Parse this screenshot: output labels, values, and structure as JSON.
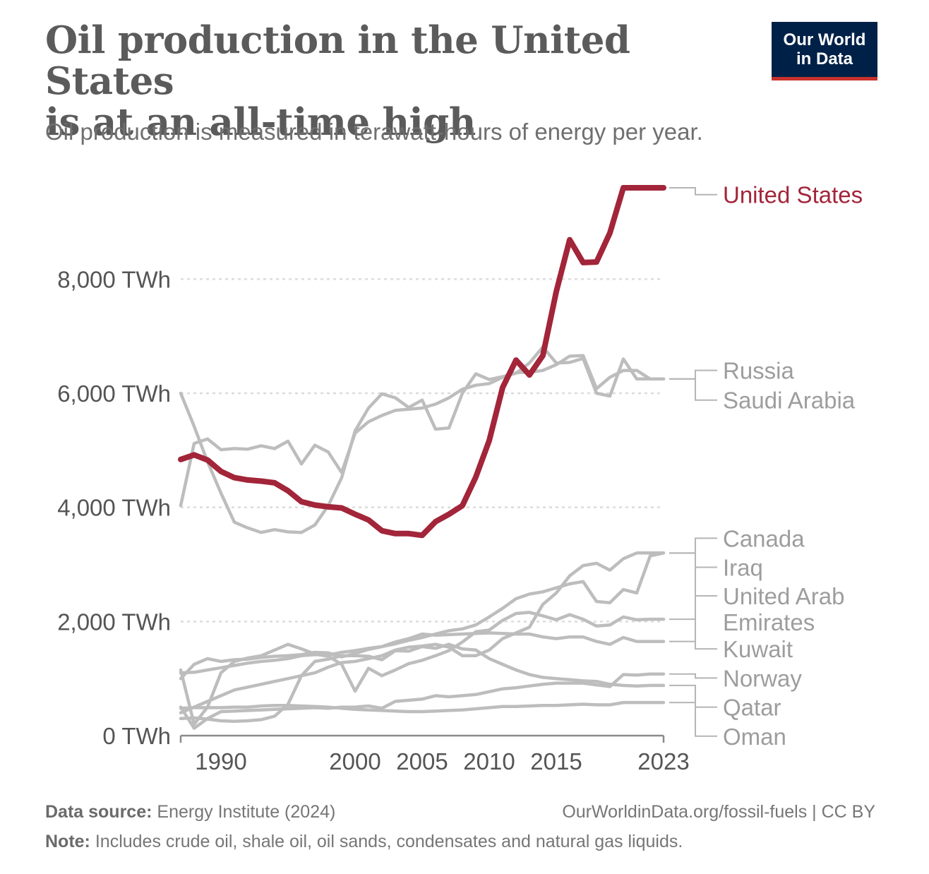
{
  "title_line1": "Oil production in the United States",
  "title_line2": "is at an all-time high",
  "subtitle": "Oil production is measured in terawatt-hours of energy per year.",
  "logo": {
    "line1": "Our World",
    "line2": "in Data"
  },
  "footer": {
    "source_label": "Data source:",
    "source_text": "Energy Institute (2024)",
    "url": "OurWorldinData.org/fossil-fuels | CC BY",
    "note_label": "Note:",
    "note_text": "Includes crude oil, shale oil, oil sands, condensates and natural gas liquids."
  },
  "colors": {
    "highlight": "#a2253a",
    "other": "#bdbdbd",
    "grid": "#dcdcdc",
    "axis_text": "#555555"
  },
  "chart_data": {
    "type": "line",
    "y_unit": "TWh",
    "ylim": [
      0,
      9600
    ],
    "xlim": [
      1987,
      2023
    ],
    "y_ticks": [
      {
        "value": 0,
        "label": "0 TWh"
      },
      {
        "value": 2000,
        "label": "2,000 TWh"
      },
      {
        "value": 4000,
        "label": "4,000 TWh"
      },
      {
        "value": 6000,
        "label": "6,000 TWh"
      },
      {
        "value": 8000,
        "label": "8,000 TWh"
      }
    ],
    "x_ticks": [
      {
        "value": 1990,
        "label": "1990"
      },
      {
        "value": 2000,
        "label": "2000"
      },
      {
        "value": 2005,
        "label": "2005"
      },
      {
        "value": 2010,
        "label": "2010"
      },
      {
        "value": 2015,
        "label": "2015"
      },
      {
        "value": 2023,
        "label": "2023"
      }
    ],
    "grid": "horizontal dotted",
    "legend": "right, labels at line ends",
    "years": [
      1987,
      1988,
      1989,
      1990,
      1991,
      1992,
      1993,
      1994,
      1995,
      1996,
      1997,
      1998,
      1999,
      2000,
      2001,
      2002,
      2003,
      2004,
      2005,
      2006,
      2007,
      2008,
      2009,
      2010,
      2011,
      2012,
      2013,
      2014,
      2015,
      2016,
      2017,
      2018,
      2019,
      2020,
      2021,
      2022,
      2023
    ],
    "series": [
      {
        "name": "United States",
        "highlight": true,
        "values": [
          4840,
          4920,
          4830,
          4630,
          4520,
          4480,
          4460,
          4430,
          4290,
          4100,
          4040,
          4010,
          3990,
          3880,
          3780,
          3590,
          3540,
          3540,
          3510,
          3750,
          3880,
          4030,
          4530,
          5170,
          6100,
          6580,
          6320,
          6660,
          7780,
          8690,
          8290,
          8300,
          8810,
          9600,
          9600,
          9600,
          9600
        ]
      },
      {
        "name": "Russia",
        "values": [
          6000,
          5420,
          4800,
          4250,
          3740,
          3640,
          3560,
          3610,
          3570,
          3560,
          3690,
          4030,
          4520,
          5340,
          5740,
          5990,
          5920,
          5750,
          5880,
          5370,
          5390,
          6000,
          6340,
          6240,
          6290,
          6350,
          6530,
          6810,
          6530,
          6540,
          6610,
          6000,
          5950,
          6600,
          6250,
          6250,
          6250
        ]
      },
      {
        "name": "Saudi Arabia",
        "values": [
          4030,
          5120,
          5200,
          5010,
          5030,
          5020,
          5080,
          5030,
          5160,
          4760,
          5090,
          4970,
          4610,
          5300,
          5500,
          5610,
          5700,
          5720,
          5740,
          5810,
          5920,
          6070,
          6140,
          6170,
          6280,
          6360,
          6370,
          6400,
          6500,
          6650,
          6660,
          6080,
          6280,
          6400,
          6400,
          6250,
          6250
        ]
      },
      {
        "name": "Canada",
        "values": [
          1100,
          1110,
          1150,
          1190,
          1230,
          1270,
          1300,
          1320,
          1350,
          1400,
          1420,
          1410,
          1460,
          1490,
          1530,
          1560,
          1610,
          1670,
          1720,
          1780,
          1840,
          1870,
          1940,
          2080,
          2230,
          2400,
          2480,
          2520,
          2590,
          2660,
          2700,
          2350,
          2330,
          2560,
          2500,
          3150,
          3200
        ]
      },
      {
        "name": "Iraq",
        "values": [
          1150,
          200,
          500,
          1100,
          1300,
          1360,
          1400,
          1500,
          1600,
          1520,
          1430,
          1390,
          1250,
          780,
          1180,
          1050,
          1150,
          1260,
          1320,
          1400,
          1490,
          1640,
          1820,
          1850,
          2020,
          2140,
          2160,
          2100,
          2030,
          2120,
          2040,
          1920,
          1940,
          2080,
          2030,
          2040,
          2040
        ]
      },
      {
        "name": "United Arab Emirates",
        "values": [
          1000,
          1250,
          1350,
          1300,
          1330,
          1340,
          1370,
          1390,
          1400,
          1420,
          1460,
          1450,
          1380,
          1440,
          1510,
          1560,
          1640,
          1700,
          1780,
          1760,
          1770,
          1780,
          1790,
          1800,
          1790,
          1780,
          1780,
          1730,
          1700,
          1730,
          1730,
          1650,
          1600,
          1720,
          1650,
          1650,
          1650
        ]
      },
      {
        "name": "Kuwait",
        "values": [
          400,
          500,
          600,
          700,
          800,
          850,
          900,
          950,
          1000,
          1050,
          1100,
          1200,
          1280,
          1300,
          1350,
          1400,
          1500,
          1550,
          1570,
          1600,
          1550,
          1400,
          1400,
          1500,
          1700,
          1800,
          1900,
          2300,
          2500,
          2800,
          2980,
          3020,
          2900,
          3100,
          3200,
          3200,
          3200
        ]
      },
      {
        "name": "Norway",
        "values": [
          500,
          130,
          300,
          420,
          430,
          440,
          450,
          460,
          470,
          480,
          490,
          480,
          500,
          500,
          520,
          480,
          600,
          620,
          640,
          700,
          680,
          700,
          720,
          770,
          820,
          840,
          870,
          900,
          920,
          920,
          920,
          890,
          860,
          1070,
          1060,
          1080,
          1080
        ]
      },
      {
        "name": "Qatar",
        "values": [
          300,
          310,
          290,
          260,
          250,
          260,
          280,
          340,
          550,
          1050,
          1300,
          1340,
          1400,
          1400,
          1390,
          1330,
          1490,
          1480,
          1560,
          1530,
          1600,
          1520,
          1500,
          1350,
          1250,
          1150,
          1070,
          1020,
          1000,
          980,
          960,
          950,
          900,
          880,
          870,
          880,
          880
        ]
      },
      {
        "name": "Oman",
        "values": [
          480,
          490,
          490,
          490,
          500,
          500,
          520,
          530,
          530,
          520,
          510,
          500,
          480,
          460,
          450,
          440,
          430,
          420,
          420,
          430,
          440,
          450,
          470,
          490,
          510,
          510,
          520,
          530,
          530,
          540,
          550,
          540,
          540,
          580,
          580,
          580,
          580
        ]
      }
    ],
    "end_labels": [
      {
        "series": "United States",
        "text": "United States",
        "label_value": 9480
      },
      {
        "series": "Russia",
        "text": "Russia",
        "label_value": 6400
      },
      {
        "series": "Saudi Arabia",
        "text": "Saudi Arabia",
        "label_value": 5880
      },
      {
        "series": "Canada",
        "text": "Canada",
        "label_value": 3460
      },
      {
        "series": "Iraq",
        "text": "Iraq",
        "label_value": 2950
      },
      {
        "series": "United Arab Emirates",
        "text": "United Arab",
        "text2": "Emirates",
        "label_value": 2450
      },
      {
        "series": "Kuwait",
        "text": "Kuwait",
        "label_value": 1520
      },
      {
        "series": "Norway",
        "text": "Norway",
        "label_value": 1010
      },
      {
        "series": "Qatar",
        "text": "Qatar",
        "label_value": 500
      },
      {
        "series": "Oman",
        "text": "Oman",
        "label_value": -10
      }
    ]
  }
}
